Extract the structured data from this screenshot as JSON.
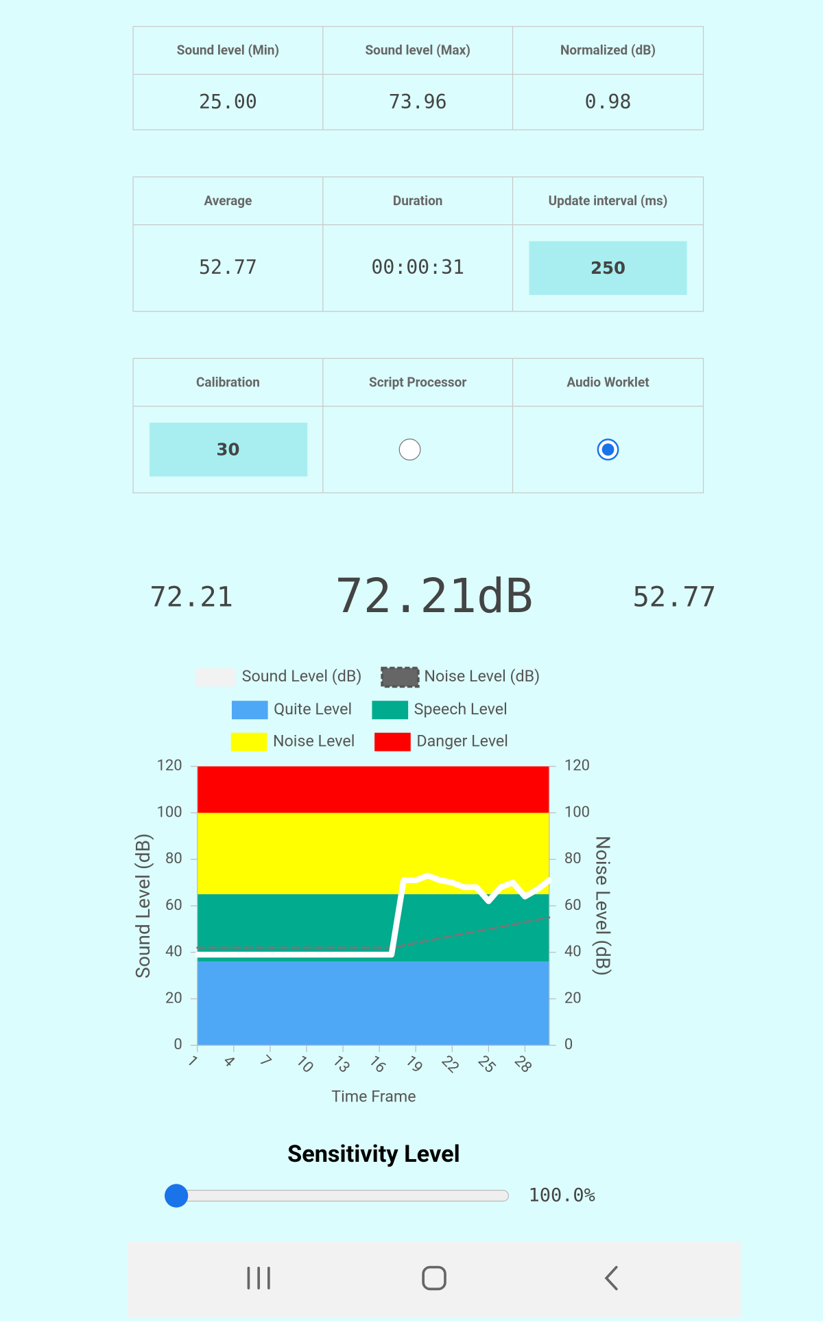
{
  "tables": [
    {
      "headers": [
        "Sound level (Min)",
        "Sound level (Max)",
        "Normalized (dB)"
      ],
      "values": [
        "25.00",
        "73.96",
        "0.98"
      ]
    },
    {
      "headers": [
        "Average",
        "Duration",
        "Update interval (ms)"
      ],
      "values": [
        "52.77",
        "00:00:31",
        "250"
      ]
    },
    {
      "headers": [
        "Calibration",
        "Script Processor",
        "Audio Worklet"
      ],
      "values": [
        "30"
      ],
      "radios": [
        false,
        true
      ]
    }
  ],
  "readings": {
    "current": "72.21",
    "main": "72.21dB",
    "average": "52.77"
  },
  "chart_data": {
    "type": "line",
    "x_label": "Time Frame",
    "y_label": "Sound Level (dB)",
    "y2_label": "Noise Level (dB)",
    "categories": [
      1,
      null,
      null,
      4,
      null,
      null,
      7,
      null,
      null,
      10,
      null,
      null,
      13,
      null,
      null,
      16,
      null,
      null,
      19,
      null,
      null,
      22,
      null,
      null,
      25,
      null,
      null,
      28,
      null,
      null
    ],
    "series": [
      {
        "name": "Sound Level (dB)",
        "color": "#ffffff",
        "values": [
          39,
          39,
          39,
          39,
          39,
          39,
          39,
          39,
          39,
          39,
          39,
          39,
          39,
          39,
          39,
          39,
          39,
          71,
          71,
          73,
          71,
          70,
          68,
          68,
          62,
          68,
          70,
          64,
          67,
          71
        ]
      },
      {
        "name": "Noise Level (dB)",
        "color": "#777777",
        "axis": "y2",
        "values": [
          42,
          42,
          42,
          42,
          42,
          42,
          42,
          42,
          42,
          42,
          42,
          42,
          42,
          42,
          42,
          42,
          42,
          43,
          44,
          45,
          46,
          47,
          48,
          49,
          50,
          51,
          52,
          53,
          54,
          55
        ]
      }
    ],
    "bands": [
      {
        "name": "Quite Level",
        "color": "#4fa8f5",
        "value": 36
      },
      {
        "name": "Speech Level",
        "color": "#00ab8e",
        "value": 29
      },
      {
        "name": "Noise Level",
        "color": "#ffff00",
        "value": 35
      },
      {
        "name": "Danger Level",
        "color": "#ff0000",
        "value": 20
      }
    ],
    "ylim": [
      0,
      120
    ],
    "yticks": [
      0,
      20,
      40,
      60,
      80,
      100,
      120
    ],
    "y2lim": [
      0,
      120
    ],
    "y2ticks": [
      0,
      20,
      40,
      60,
      80,
      100,
      120
    ],
    "grid": false
  },
  "sensitivity": {
    "title": "Sensitivity Level",
    "value": "100.0%"
  }
}
